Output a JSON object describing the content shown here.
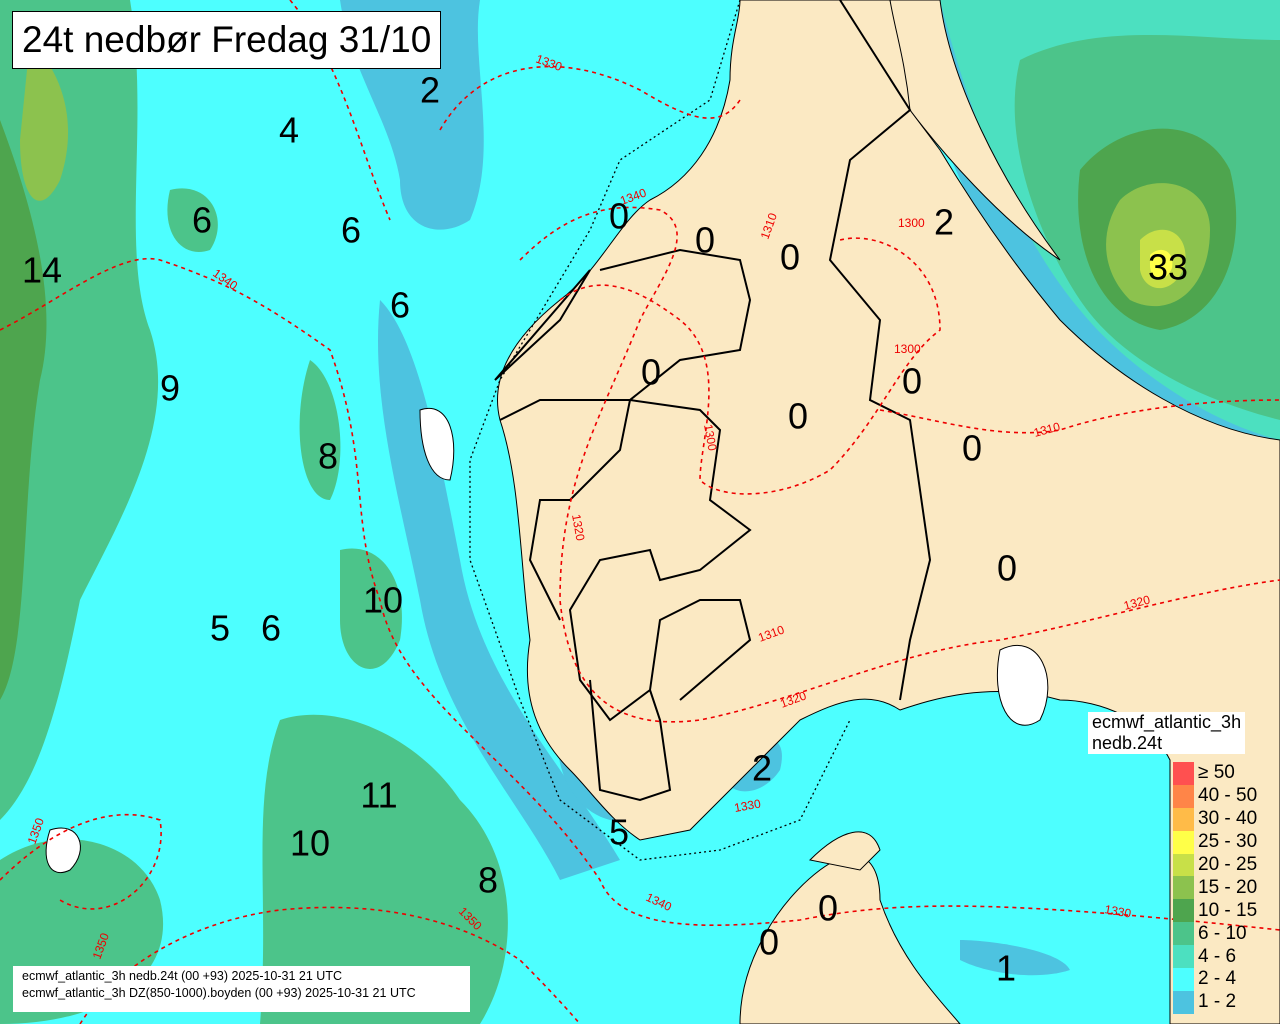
{
  "title": "24t nedbør Fredag 31/10",
  "footer": {
    "line1": "ecmwf_atlantic_3h nedb.24t (00 +93) 2025-10-31 21 UTC",
    "line2": "ecmwf_atlantic_3h DZ(850-1000).boyden (00 +93) 2025-10-31 21 UTC"
  },
  "legend": {
    "model": "ecmwf_atlantic_3h",
    "field": "nedb.24t",
    "items": [
      {
        "label": "≥ 50",
        "color": "#ff5050"
      },
      {
        "label": "40 - 50",
        "color": "#ff8548"
      },
      {
        "label": "30 - 40",
        "color": "#ffbb48"
      },
      {
        "label": "25 - 30",
        "color": "#ffff48"
      },
      {
        "label": "20 - 25",
        "color": "#c8e048"
      },
      {
        "label": "15 - 20",
        "color": "#8cc24e"
      },
      {
        "label": "10 - 15",
        "color": "#4ea54e"
      },
      {
        "label": "6 - 10",
        "color": "#4cc48a"
      },
      {
        "label": "4 - 6",
        "color": "#4ce0c0"
      },
      {
        "label": "2 - 4",
        "color": "#4dffff"
      },
      {
        "label": "1 - 2",
        "color": "#4dc3e0"
      }
    ]
  },
  "colors": {
    "land": "#fbe9c3",
    "contour": "#e00000",
    "border": "#000000"
  },
  "precip_values": [
    "2",
    "4",
    "6",
    "6",
    "14",
    "6",
    "9",
    "8",
    "10",
    "5",
    "6",
    "11",
    "10",
    "8",
    "5",
    "2",
    "0",
    "0",
    "0",
    "2",
    "33",
    "0",
    "0",
    "0",
    "0",
    "0",
    "0",
    "0",
    "1"
  ],
  "contour_labels": [
    "1330",
    "1340",
    "1340",
    "1300",
    "1300",
    "1310",
    "1320",
    "1310",
    "1320",
    "1330",
    "1340",
    "1350",
    "1330",
    "1350",
    "1350",
    "1320",
    "1300",
    "1310"
  ]
}
